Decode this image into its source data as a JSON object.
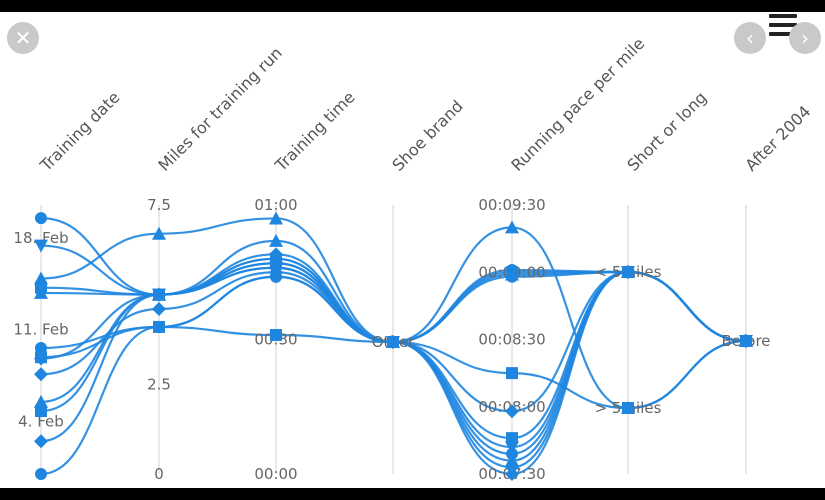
{
  "icons": {
    "close": "close-icon",
    "prev": "chevron-left-icon",
    "next": "chevron-right-icon",
    "menu": "hamburger-menu-icon"
  },
  "glyphs": {
    "close": "✕",
    "prev": "‹",
    "next": "›"
  },
  "chart_data": {
    "type": "parallel-coordinates",
    "color": "#1f86e0",
    "axes": [
      {
        "title": "Training date",
        "kind": "datetime",
        "ticks": [
          {
            "label": "18. Feb",
            "value": 18
          },
          {
            "label": "11. Feb",
            "value": 11
          },
          {
            "label": "4. Feb",
            "value": 4
          }
        ],
        "range": [
          0,
          20.5
        ]
      },
      {
        "title": "Miles for training run",
        "kind": "linear",
        "ticks": [
          {
            "label": "7.5",
            "value": 7.5
          },
          {
            "label": "2.5",
            "value": 2.5
          },
          {
            "label": "0",
            "value": 0
          }
        ],
        "range": [
          0,
          7.5
        ]
      },
      {
        "title": "Training time",
        "kind": "time",
        "ticks": [
          {
            "label": "01:00",
            "value": 60
          },
          {
            "label": "00:30",
            "value": 30
          },
          {
            "label": "00:00",
            "value": 0
          }
        ],
        "range": [
          0,
          60
        ]
      },
      {
        "title": "Shoe brand",
        "kind": "category",
        "ticks": [
          {
            "label": "Other",
            "value": "Other"
          }
        ]
      },
      {
        "title": "Running pace per mile",
        "kind": "time",
        "ticks": [
          {
            "label": "00:09:30",
            "value": 570
          },
          {
            "label": "00:09:00",
            "value": 540
          },
          {
            "label": "00:08:30",
            "value": 510
          },
          {
            "label": "00:08:00",
            "value": 480
          },
          {
            "label": "00:07:30",
            "value": 450
          }
        ],
        "range": [
          450,
          570
        ]
      },
      {
        "title": "Short or long",
        "kind": "category",
        "ticks": [
          {
            "label": "< 5miles",
            "value": "< 5miles"
          },
          {
            "label": "> 5miles",
            "value": "> 5miles"
          }
        ]
      },
      {
        "title": "After 2004",
        "kind": "category",
        "ticks": [
          {
            "label": "Before",
            "value": "Before"
          }
        ]
      }
    ],
    "series": [
      {
        "marker": "circle",
        "values": [
          19.5,
          5.0,
          48,
          "Other",
          538,
          "< 5miles",
          "Before"
        ]
      },
      {
        "marker": "triangle-down",
        "values": [
          17.4,
          5.0,
          46,
          "Other",
          462,
          "< 5miles",
          "Before"
        ]
      },
      {
        "marker": "triangle",
        "values": [
          14.9,
          6.7,
          57,
          "Other",
          539,
          "< 5miles",
          "Before"
        ]
      },
      {
        "marker": "square",
        "values": [
          14.2,
          5.0,
          47,
          "Other",
          540,
          "< 5miles",
          "Before"
        ]
      },
      {
        "marker": "triangle",
        "values": [
          13.8,
          5.0,
          52,
          "Other",
          456,
          "< 5miles",
          "Before"
        ]
      },
      {
        "marker": "circle",
        "values": [
          9.6,
          4.1,
          44,
          "Other",
          541,
          "< 5miles",
          "Before"
        ]
      },
      {
        "marker": "square",
        "values": [
          8.9,
          4.1,
          31,
          "Other",
          466,
          "< 5miles",
          "Before"
        ]
      },
      {
        "marker": "diamond",
        "values": [
          8.8,
          5.0,
          49,
          "Other",
          478,
          "< 5miles",
          "Before"
        ]
      },
      {
        "marker": "diamond",
        "values": [
          7.6,
          4.6,
          45,
          "Other",
          453,
          "< 5miles",
          "Before"
        ]
      },
      {
        "marker": "triangle",
        "values": [
          5.5,
          5.0,
          47,
          "Other",
          560,
          "> 5miles",
          "Before"
        ]
      },
      {
        "marker": "square",
        "values": [
          4.8,
          5.0,
          48,
          "Other",
          495,
          "> 5miles",
          "Before"
        ]
      },
      {
        "marker": "diamond",
        "values": [
          2.5,
          5.0,
          46,
          "Other",
          450,
          "< 5miles",
          "Before"
        ]
      },
      {
        "marker": "circle",
        "values": [
          0,
          4.1,
          44,
          "Other",
          459,
          "< 5miles",
          "Before"
        ]
      }
    ]
  }
}
